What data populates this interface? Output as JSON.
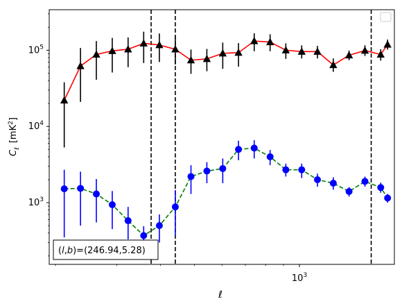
{
  "chart_data": {
    "type": "scatter",
    "title": "",
    "xlabel": "ℓ",
    "ylabel_symbol": "C",
    "ylabel_sub": "ℓ",
    "ylabel_unit": "[mK",
    "ylabel_unit_sup": "2",
    "ylabel_unit_close": "]",
    "xscale": "log",
    "yscale": "log",
    "xlim": [
      192,
      1870
    ],
    "ylim": [
      155,
      340000
    ],
    "xticks": [
      {
        "value": 1000,
        "label_base": "10",
        "label_exp": "3"
      }
    ],
    "yticks": [
      {
        "value": 1000,
        "label_base": "10",
        "label_exp": "3"
      },
      {
        "value": 10000,
        "label_base": "10",
        "label_exp": "4"
      },
      {
        "value": 100000,
        "label_base": "10",
        "label_exp": "5"
      }
    ],
    "grid": false,
    "legend": "top-right (empty)",
    "annotation": {
      "text": "(l, b)=(246.94,5.28)",
      "prefix": "(",
      "l": "l",
      "comma": ",",
      "b": "b",
      "suffix": ")=(246.94,5.28)",
      "position": "bottom-left"
    },
    "vlines": [
      376,
      441,
      1605
    ],
    "series": [
      {
        "marker": "triangle",
        "color": "#000000",
        "line_color": "#ff0000",
        "line_style": "solid",
        "x": [
          212,
          236,
          262,
          291,
          323,
          358,
          397,
          441,
          489,
          543,
          603,
          669,
          742,
          824,
          914,
          1015,
          1126,
          1250,
          1387,
          1540,
          1709,
          1788
        ],
        "y": [
          22000,
          62000,
          88000,
          98000,
          103000,
          123000,
          117000,
          103000,
          74000,
          77000,
          91000,
          93000,
          132000,
          128000,
          100000,
          96000,
          96000,
          64000,
          86000,
          99000,
          88000,
          119000
        ],
        "yerr_low": [
          5300,
          21000,
          41000,
          51000,
          60000,
          68000,
          70000,
          65000,
          49000,
          53000,
          57000,
          61000,
          97000,
          97000,
          77000,
          78000,
          78000,
          52000,
          74000,
          84000,
          73000,
          102000
        ],
        "yerr_high": [
          38000,
          107000,
          132000,
          145000,
          147000,
          175000,
          166000,
          152000,
          102000,
          104000,
          126000,
          124000,
          167000,
          162000,
          123000,
          116000,
          114000,
          78000,
          99000,
          116000,
          103000,
          138000
        ]
      },
      {
        "marker": "circle",
        "color": "#0000ff",
        "line_color": "#008000",
        "line_style": "dashed",
        "x": [
          212,
          236,
          262,
          291,
          323,
          358,
          397,
          441,
          489,
          543,
          603,
          669,
          742,
          824,
          914,
          1015,
          1126,
          1250,
          1387,
          1540,
          1709,
          1788
        ],
        "y": [
          1520,
          1540,
          1300,
          940,
          580,
          370,
          500,
          880,
          2200,
          2600,
          2800,
          5000,
          5200,
          4000,
          2700,
          2700,
          2000,
          1800,
          1400,
          1900,
          1580,
          1150
        ],
        "yerr_low": [
          350,
          500,
          550,
          450,
          330,
          260,
          300,
          370,
          1300,
          1800,
          1800,
          3600,
          3800,
          3100,
          2200,
          2100,
          1620,
          1480,
          1200,
          1620,
          1350,
          1000
        ],
        "yerr_high": [
          2700,
          2550,
          2040,
          1420,
          880,
          490,
          700,
          1460,
          3100,
          3400,
          3800,
          6500,
          6600,
          4900,
          3250,
          3250,
          2400,
          2150,
          1600,
          2200,
          1830,
          1300
        ]
      }
    ]
  }
}
